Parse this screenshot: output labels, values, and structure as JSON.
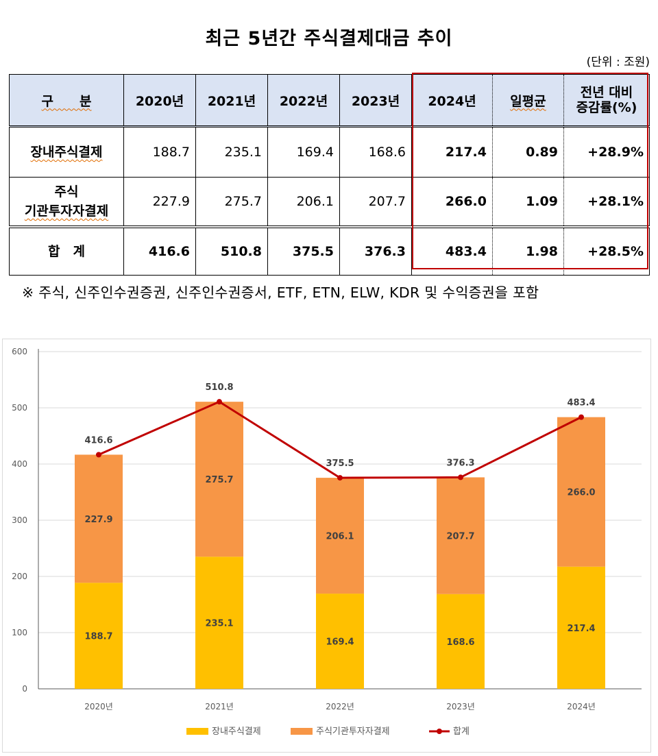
{
  "title": "최근 5년간 주식결제대금 추이",
  "unit": "(단위 : 조원)",
  "table": {
    "header": {
      "category": "구　　분",
      "years": [
        "2020년",
        "2021년",
        "2022년",
        "2023년",
        "2024년"
      ],
      "daily_avg": "일평균",
      "yoy_line1": "전년 대비",
      "yoy_line2": "증감률(%)"
    },
    "rows": [
      {
        "label": "장내주식결제",
        "values": [
          "188.7",
          "235.1",
          "169.4",
          "168.6",
          "217.4"
        ],
        "daily_avg": "0.89",
        "yoy": "+28.9%"
      },
      {
        "label_line1": "주식",
        "label_line2": "기관투자자결제",
        "values": [
          "227.9",
          "275.7",
          "206.1",
          "207.7",
          "266.0"
        ],
        "daily_avg": "1.09",
        "yoy": "+28.1%"
      },
      {
        "label": "합　계",
        "values": [
          "416.6",
          "510.8",
          "375.5",
          "376.3",
          "483.4"
        ],
        "daily_avg": "1.98",
        "yoy": "+28.5%"
      }
    ]
  },
  "note": "※ 주식, 신주인수권증권, 신주인수권증서, ETF, ETN, ELW, KDR 및 수익증권을 포함",
  "chart_data": {
    "type": "bar",
    "stacked": true,
    "categories": [
      "2020년",
      "2021년",
      "2022년",
      "2023년",
      "2024년"
    ],
    "series": [
      {
        "name": "장내주식결제",
        "type": "bar",
        "color": "#ffc000",
        "values": [
          188.7,
          235.1,
          169.4,
          168.6,
          217.4
        ]
      },
      {
        "name": "주식기관투자자결제",
        "type": "bar",
        "color": "#f79646",
        "values": [
          227.9,
          275.7,
          206.1,
          207.7,
          266.0
        ]
      },
      {
        "name": "합계",
        "type": "line",
        "color": "#c00000",
        "values": [
          416.6,
          510.8,
          375.5,
          376.3,
          483.4
        ]
      }
    ],
    "yticks": [
      0,
      100,
      200,
      300,
      400,
      500,
      600
    ],
    "ylim": [
      0,
      600
    ],
    "grid": true,
    "legend": "bottom"
  }
}
